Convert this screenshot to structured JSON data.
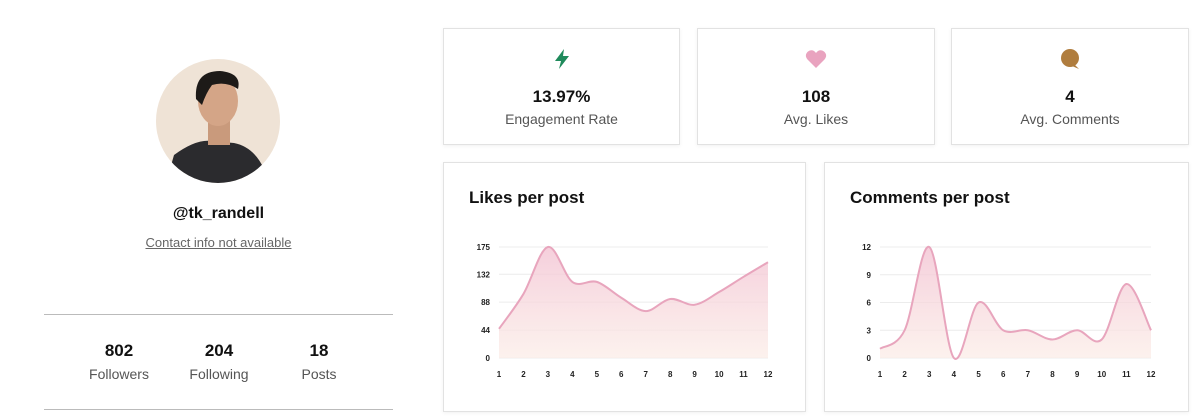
{
  "profile": {
    "handle": "@tk_randell",
    "contact": "Contact info not available",
    "stats": [
      {
        "value": "802",
        "label": "Followers"
      },
      {
        "value": "204",
        "label": "Following"
      },
      {
        "value": "18",
        "label": "Posts"
      }
    ]
  },
  "metrics": [
    {
      "value": "13.97%",
      "label": "Engagement Rate"
    },
    {
      "value": "108",
      "label": "Avg. Likes"
    },
    {
      "value": "4",
      "label": "Avg. Comments"
    }
  ],
  "chart_data": [
    {
      "type": "area",
      "title": "Likes per post",
      "x": [
        1,
        2,
        3,
        4,
        5,
        6,
        7,
        8,
        9,
        10,
        11,
        12
      ],
      "values": [
        46,
        101,
        175,
        120,
        120,
        95,
        74,
        93,
        84,
        104,
        128,
        151
      ],
      "color": "#e8a5bd",
      "xlim": [
        1,
        12
      ],
      "xticks": [
        1,
        2,
        3,
        4,
        5,
        6,
        7,
        8,
        9,
        10,
        11,
        12
      ],
      "ylim": [
        0,
        175
      ],
      "yticks": [
        0,
        44,
        88,
        132,
        175
      ],
      "grid": true
    },
    {
      "type": "area",
      "title": "Comments per post",
      "x": [
        1,
        2,
        3,
        4,
        5,
        6,
        7,
        8,
        9,
        10,
        11,
        12
      ],
      "values": [
        1,
        3,
        12,
        0,
        6,
        3,
        3,
        2,
        3,
        2,
        8,
        3
      ],
      "color": "#e8a5bd",
      "xlim": [
        1,
        12
      ],
      "xticks": [
        1,
        2,
        3,
        4,
        5,
        6,
        7,
        8,
        9,
        10,
        11,
        12
      ],
      "ylim": [
        0,
        12
      ],
      "yticks": [
        0,
        3,
        6,
        9,
        12
      ],
      "grid": true
    }
  ]
}
